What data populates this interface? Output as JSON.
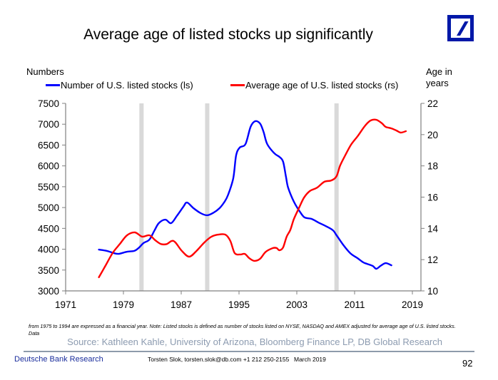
{
  "slide": {
    "title": "Average age of listed stocks up significantly",
    "logo": "deutsche-bank-logo",
    "note": "from 1975 to 1994 are expressed  as a financial year. Note: Listed stocks is defined as number of stocks listed on NYSE, NASDAQ and AMEX adjusted for average age of U.S. listed stocks. Data",
    "source": "Source: Kathleen Kahle, University of Arizona, Bloomberg Finance LP, DB Global Research",
    "footer": {
      "org": "Deutsche Bank Research",
      "author": "Torsten Slok, torsten.slok@db.com  +1 212 250-2155",
      "date": "March 2019",
      "page": "92"
    }
  },
  "colors": {
    "series_blue": "#0000ff",
    "series_red": "#ff0000",
    "recession": "#d9d9d9",
    "brand": "#0018a8"
  },
  "chart_data": {
    "type": "line",
    "title": "Average age of listed stocks up significantly",
    "ylabel_left": "Numbers",
    "ylabel_right_line1": "Age in",
    "ylabel_right_line2": "years",
    "xlim": [
      1971,
      2019.8
    ],
    "ylim_left": [
      3000,
      7500
    ],
    "ylim_right": [
      10,
      22
    ],
    "x_ticks": [
      1971,
      1979,
      1987,
      1995,
      2003,
      2011,
      2019
    ],
    "x_tick_labels": [
      "1971",
      "1979",
      "1987",
      "1995",
      "2003",
      "2011",
      "2019"
    ],
    "y_left_ticks": [
      3000,
      3500,
      4000,
      4500,
      5000,
      5500,
      6000,
      6500,
      7000,
      7500
    ],
    "y_left_tick_labels": [
      "3000",
      "3500",
      "4000",
      "4500",
      "5000",
      "5500",
      "6000",
      "6500",
      "7000",
      "7500"
    ],
    "y_right_ticks": [
      10,
      12,
      14,
      16,
      18,
      20,
      22
    ],
    "y_right_tick_labels": [
      "10",
      "12",
      "14",
      "16",
      "18",
      "20",
      "22"
    ],
    "grid": false,
    "legend_placement": "top",
    "recession_bars": [
      1981.5,
      1990.6,
      2008.5
    ],
    "series": [
      {
        "name": "Number of U.S. listed stocks (ls)",
        "axis": "left",
        "color": "#0000ff",
        "x": [
          1975.6,
          1976.7,
          1977.7,
          1978.4,
          1979.5,
          1980.5,
          1981.1,
          1981.8,
          1982.6,
          1983.3,
          1983.9,
          1984.8,
          1985.6,
          1986.4,
          1987.3,
          1987.8,
          1988.7,
          1989.7,
          1990.6,
          1991.5,
          1992.3,
          1993.0,
          1993.5,
          1994.2,
          1994.6,
          1995.1,
          1995.9,
          1996.6,
          1997.2,
          1997.9,
          1998.4,
          1998.9,
          1999.9,
          2000.6,
          2001.1,
          2001.5,
          2001.8,
          2002.6,
          2003.5,
          2004.1,
          2005.0,
          2006.0,
          2007.0,
          2008.0,
          2008.5,
          2009.4,
          2010.4,
          2011.4,
          2012.2,
          2012.7,
          2013.5,
          2014.0,
          2014.6,
          2015.3,
          2016.1
        ],
        "values": [
          3990,
          3960,
          3905,
          3890,
          3940,
          3960,
          4030,
          4150,
          4230,
          4450,
          4625,
          4710,
          4625,
          4800,
          5020,
          5120,
          4985,
          4865,
          4815,
          4880,
          4985,
          5140,
          5310,
          5700,
          6250,
          6440,
          6525,
          6935,
          7070,
          7020,
          6815,
          6525,
          6300,
          6215,
          6100,
          5740,
          5480,
          5140,
          4880,
          4760,
          4730,
          4640,
          4555,
          4455,
          4335,
          4110,
          3905,
          3785,
          3685,
          3650,
          3600,
          3530,
          3600,
          3665,
          3615
        ]
      },
      {
        "name": "Average age of U.S. listed stocks (rs)",
        "axis": "right",
        "color": "#ff0000",
        "x": [
          1975.6,
          1976.5,
          1977.5,
          1978.5,
          1979.5,
          1980.6,
          1981.6,
          1982.6,
          1983.4,
          1984.2,
          1985.0,
          1985.7,
          1986.2,
          1987.1,
          1988.1,
          1989.1,
          1990.2,
          1991.2,
          1992.1,
          1993.1,
          1993.8,
          1994.4,
          1995.2,
          1995.8,
          1996.4,
          1997.1,
          1997.9,
          1998.7,
          1999.7,
          2000.2,
          2000.6,
          2001.1,
          2001.6,
          2002.1,
          2002.6,
          2003.3,
          2004.0,
          2004.8,
          2005.8,
          2006.8,
          2007.8,
          2008.5,
          2009.0,
          2009.7,
          2010.5,
          2011.5,
          2012.4,
          2013.2,
          2014.0,
          2014.8,
          2015.3,
          2016.1,
          2016.8,
          2017.4,
          2018.1
        ],
        "values": [
          10.87,
          11.6,
          12.42,
          13.0,
          13.56,
          13.74,
          13.47,
          13.56,
          13.24,
          13.0,
          13.0,
          13.2,
          13.1,
          12.55,
          12.19,
          12.55,
          13.1,
          13.47,
          13.6,
          13.6,
          13.2,
          12.42,
          12.33,
          12.37,
          12.1,
          11.92,
          12.05,
          12.5,
          12.74,
          12.74,
          12.6,
          12.78,
          13.47,
          13.9,
          14.6,
          15.3,
          15.97,
          16.39,
          16.6,
          16.98,
          17.07,
          17.34,
          18.03,
          18.67,
          19.35,
          19.95,
          20.54,
          20.9,
          20.95,
          20.72,
          20.5,
          20.4,
          20.26,
          20.13,
          20.22
        ]
      }
    ]
  }
}
